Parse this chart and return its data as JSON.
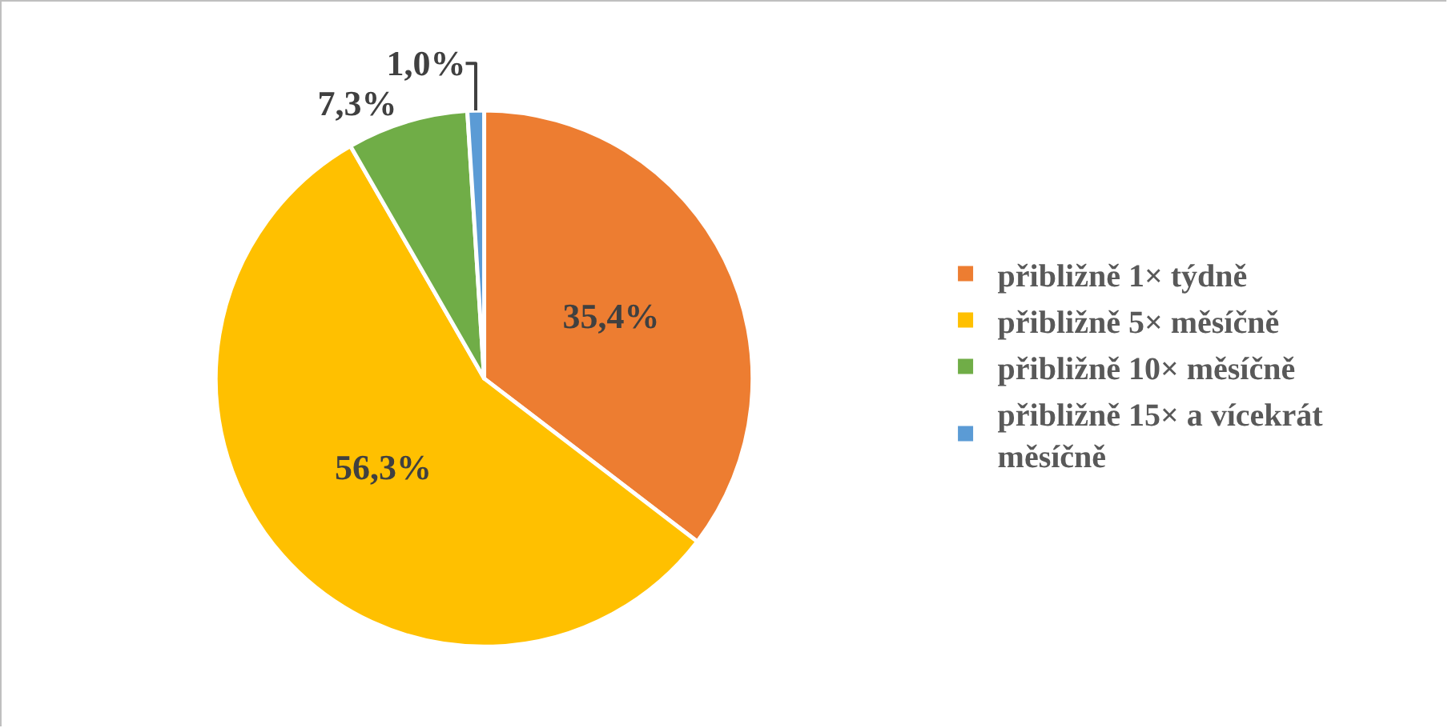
{
  "chart_data": {
    "type": "pie",
    "categories": [
      "přibližně 1× týdně",
      "přibližně 5× měsíčně",
      "přibližně 10× měsíčně",
      "přibližně 15× a vícekrát měsíčně"
    ],
    "values": [
      35.4,
      56.3,
      7.3,
      1.0
    ],
    "value_labels": [
      "35,4%",
      "56,3%",
      "7,3%",
      "1,0%"
    ],
    "colors": [
      "#ed7d31",
      "#ffc000",
      "#70ad47",
      "#5b9bd5"
    ],
    "legend": "right"
  }
}
